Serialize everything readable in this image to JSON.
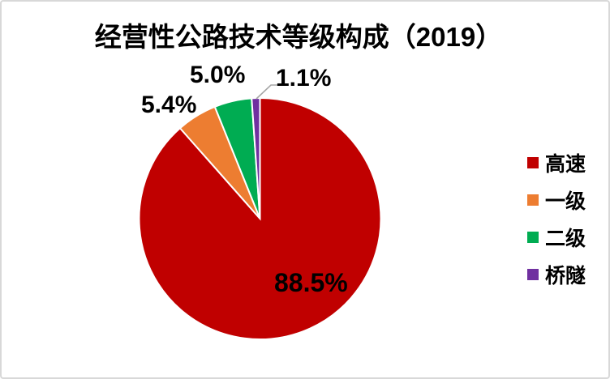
{
  "frame": {
    "background": "#FFFFFF",
    "border_color": "#D8D8D8"
  },
  "chart_data": {
    "type": "pie",
    "title": "经营性公路技术等级构成（2019）",
    "slices": [
      {
        "name": "高速",
        "value": 88.5,
        "label": "88.5%",
        "color": "#C00000"
      },
      {
        "name": "一级",
        "value": 5.4,
        "label": "5.4%",
        "color": "#ED7D31"
      },
      {
        "name": "二级",
        "value": 5.0,
        "label": "5.0%",
        "color": "#00AC52"
      },
      {
        "name": "桥隧",
        "value": 1.1,
        "label": "1.1%",
        "color": "#7030A0"
      }
    ],
    "start_angle_deg": 0,
    "direction": "clockwise",
    "slice_border_color": "#FFFFFF",
    "label_leader_color": "#A6A6A6",
    "legend": {
      "position": "right"
    }
  }
}
